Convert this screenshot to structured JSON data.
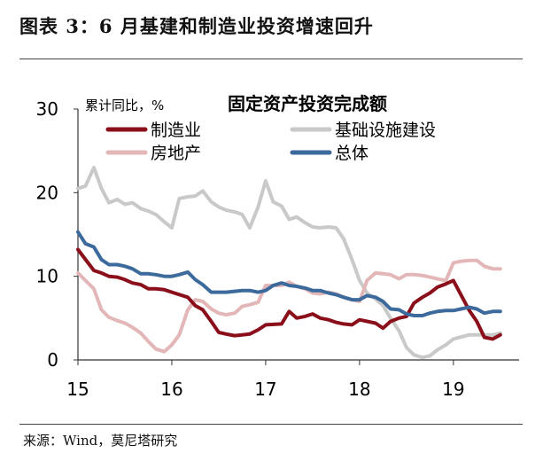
{
  "figure_title": "图表 3：6 月基建和制造业投资增速回升",
  "source": "来源：Wind，莫尼塔研究",
  "chart_data": {
    "type": "line",
    "title": "固定资产投资完成额",
    "ylabel": "累计同比，%",
    "ylim": [
      0,
      30
    ],
    "yticks": [
      0,
      10,
      20,
      30
    ],
    "xlim": [
      15.0,
      19.7
    ],
    "xticks": [
      "15",
      "16",
      "17",
      "18",
      "19"
    ],
    "grid": false,
    "legend_position": "top",
    "series": [
      {
        "name": "制造业",
        "color": "#8b0f1a",
        "x": [
          15.0,
          15.17,
          15.25,
          15.33,
          15.42,
          15.5,
          15.58,
          15.67,
          15.75,
          15.83,
          15.92,
          16.0,
          16.17,
          16.25,
          16.33,
          16.42,
          16.5,
          16.58,
          16.67,
          16.75,
          16.83,
          16.92,
          17.0,
          17.17,
          17.25,
          17.33,
          17.42,
          17.5,
          17.58,
          17.67,
          17.75,
          17.83,
          17.92,
          18.0,
          18.17,
          18.25,
          18.33,
          18.42,
          18.5,
          18.58,
          18.67,
          18.75,
          18.83,
          18.92,
          19.0,
          19.17,
          19.25,
          19.33,
          19.42,
          19.5
        ],
        "y": [
          13.2,
          10.7,
          10.4,
          10.0,
          9.9,
          9.6,
          9.2,
          9.0,
          8.5,
          8.5,
          8.4,
          8.1,
          7.5,
          6.5,
          6.0,
          4.6,
          3.3,
          3.1,
          2.9,
          3.0,
          3.1,
          3.6,
          4.2,
          4.3,
          5.8,
          5.0,
          5.2,
          5.5,
          5.0,
          4.8,
          4.5,
          4.3,
          4.2,
          4.8,
          4.4,
          3.8,
          4.6,
          5.0,
          5.2,
          6.8,
          7.5,
          8.0,
          8.7,
          9.1,
          9.5,
          5.9,
          4.6,
          2.7,
          2.5,
          3.0
        ]
      },
      {
        "name": "基础设施建设",
        "color": "#c9c9c9",
        "x": [
          15.0,
          15.08,
          15.17,
          15.25,
          15.33,
          15.42,
          15.5,
          15.58,
          15.67,
          15.75,
          15.83,
          15.92,
          16.0,
          16.08,
          16.17,
          16.25,
          16.33,
          16.42,
          16.5,
          16.58,
          16.67,
          16.75,
          16.83,
          16.92,
          17.0,
          17.08,
          17.17,
          17.25,
          17.33,
          17.42,
          17.5,
          17.58,
          17.67,
          17.75,
          17.83,
          17.92,
          18.0,
          18.08,
          18.17,
          18.25,
          18.33,
          18.42,
          18.5,
          18.58,
          18.67,
          18.75,
          18.83,
          18.92,
          19.0,
          19.17,
          19.25,
          19.33,
          19.42,
          19.5
        ],
        "y": [
          20.5,
          20.8,
          23.0,
          20.5,
          18.8,
          19.2,
          18.6,
          18.8,
          18.1,
          17.8,
          17.4,
          16.5,
          15.8,
          19.3,
          19.5,
          19.6,
          20.2,
          18.9,
          18.3,
          17.9,
          17.7,
          17.4,
          15.8,
          18.3,
          21.4,
          18.9,
          18.4,
          16.8,
          17.1,
          16.4,
          15.9,
          15.8,
          15.9,
          15.8,
          14.5,
          12.0,
          9.5,
          8.0,
          7.3,
          6.5,
          5.0,
          3.5,
          1.5,
          0.6,
          0.3,
          0.5,
          1.2,
          1.8,
          2.5,
          3.0,
          3.0,
          3.0,
          3.0,
          3.2
        ]
      },
      {
        "name": "房地产",
        "color": "#e3b7b7",
        "x": [
          15.0,
          15.17,
          15.25,
          15.33,
          15.42,
          15.5,
          15.58,
          15.67,
          15.75,
          15.83,
          15.92,
          16.0,
          16.08,
          16.17,
          16.25,
          16.33,
          16.42,
          16.5,
          16.58,
          16.67,
          16.75,
          16.83,
          16.92,
          17.0,
          17.17,
          17.25,
          17.33,
          17.42,
          17.5,
          17.58,
          17.67,
          17.75,
          17.83,
          17.92,
          18.0,
          18.08,
          18.17,
          18.25,
          18.33,
          18.42,
          18.5,
          18.58,
          18.67,
          18.75,
          18.83,
          18.92,
          19.0,
          19.08,
          19.17,
          19.25,
          19.33,
          19.42,
          19.5
        ],
        "y": [
          10.4,
          8.5,
          6.0,
          5.1,
          4.7,
          4.4,
          3.9,
          3.2,
          2.2,
          1.3,
          1.0,
          1.8,
          3.0,
          6.0,
          7.2,
          7.0,
          6.1,
          5.6,
          5.4,
          5.6,
          6.4,
          6.6,
          6.9,
          8.9,
          8.9,
          9.3,
          8.8,
          8.5,
          8.0,
          7.9,
          8.1,
          7.9,
          7.5,
          7.2,
          7.0,
          9.5,
          10.4,
          10.3,
          10.2,
          9.7,
          10.2,
          10.2,
          10.1,
          9.9,
          9.7,
          9.5,
          11.6,
          11.8,
          11.9,
          11.9,
          11.2,
          10.9,
          10.9
        ]
      },
      {
        "name": "总体",
        "color": "#3c6a9c",
        "x": [
          15.0,
          15.08,
          15.17,
          15.25,
          15.33,
          15.42,
          15.5,
          15.58,
          15.67,
          15.75,
          15.83,
          15.92,
          16.0,
          16.08,
          16.17,
          16.25,
          16.33,
          16.42,
          16.5,
          16.58,
          16.67,
          16.75,
          16.83,
          16.92,
          17.0,
          17.08,
          17.17,
          17.25,
          17.33,
          17.42,
          17.5,
          17.58,
          17.67,
          17.75,
          17.83,
          17.92,
          18.0,
          18.08,
          18.17,
          18.25,
          18.33,
          18.42,
          18.5,
          18.58,
          18.67,
          18.75,
          18.83,
          18.92,
          19.0,
          19.08,
          19.17,
          19.25,
          19.33,
          19.42,
          19.5
        ],
        "y": [
          15.3,
          13.9,
          13.5,
          12.0,
          11.4,
          11.4,
          11.2,
          10.9,
          10.3,
          10.3,
          10.2,
          10.0,
          10.0,
          10.2,
          10.5,
          9.6,
          9.0,
          8.1,
          8.1,
          8.1,
          8.2,
          8.3,
          8.3,
          8.1,
          8.3,
          8.9,
          9.2,
          8.9,
          8.8,
          8.6,
          8.3,
          8.3,
          8.0,
          7.8,
          7.5,
          7.2,
          7.2,
          7.7,
          7.5,
          7.0,
          6.1,
          6.0,
          5.5,
          5.3,
          5.3,
          5.6,
          5.8,
          5.9,
          5.9,
          6.1,
          6.3,
          6.1,
          5.6,
          5.8,
          5.8
        ]
      }
    ]
  }
}
